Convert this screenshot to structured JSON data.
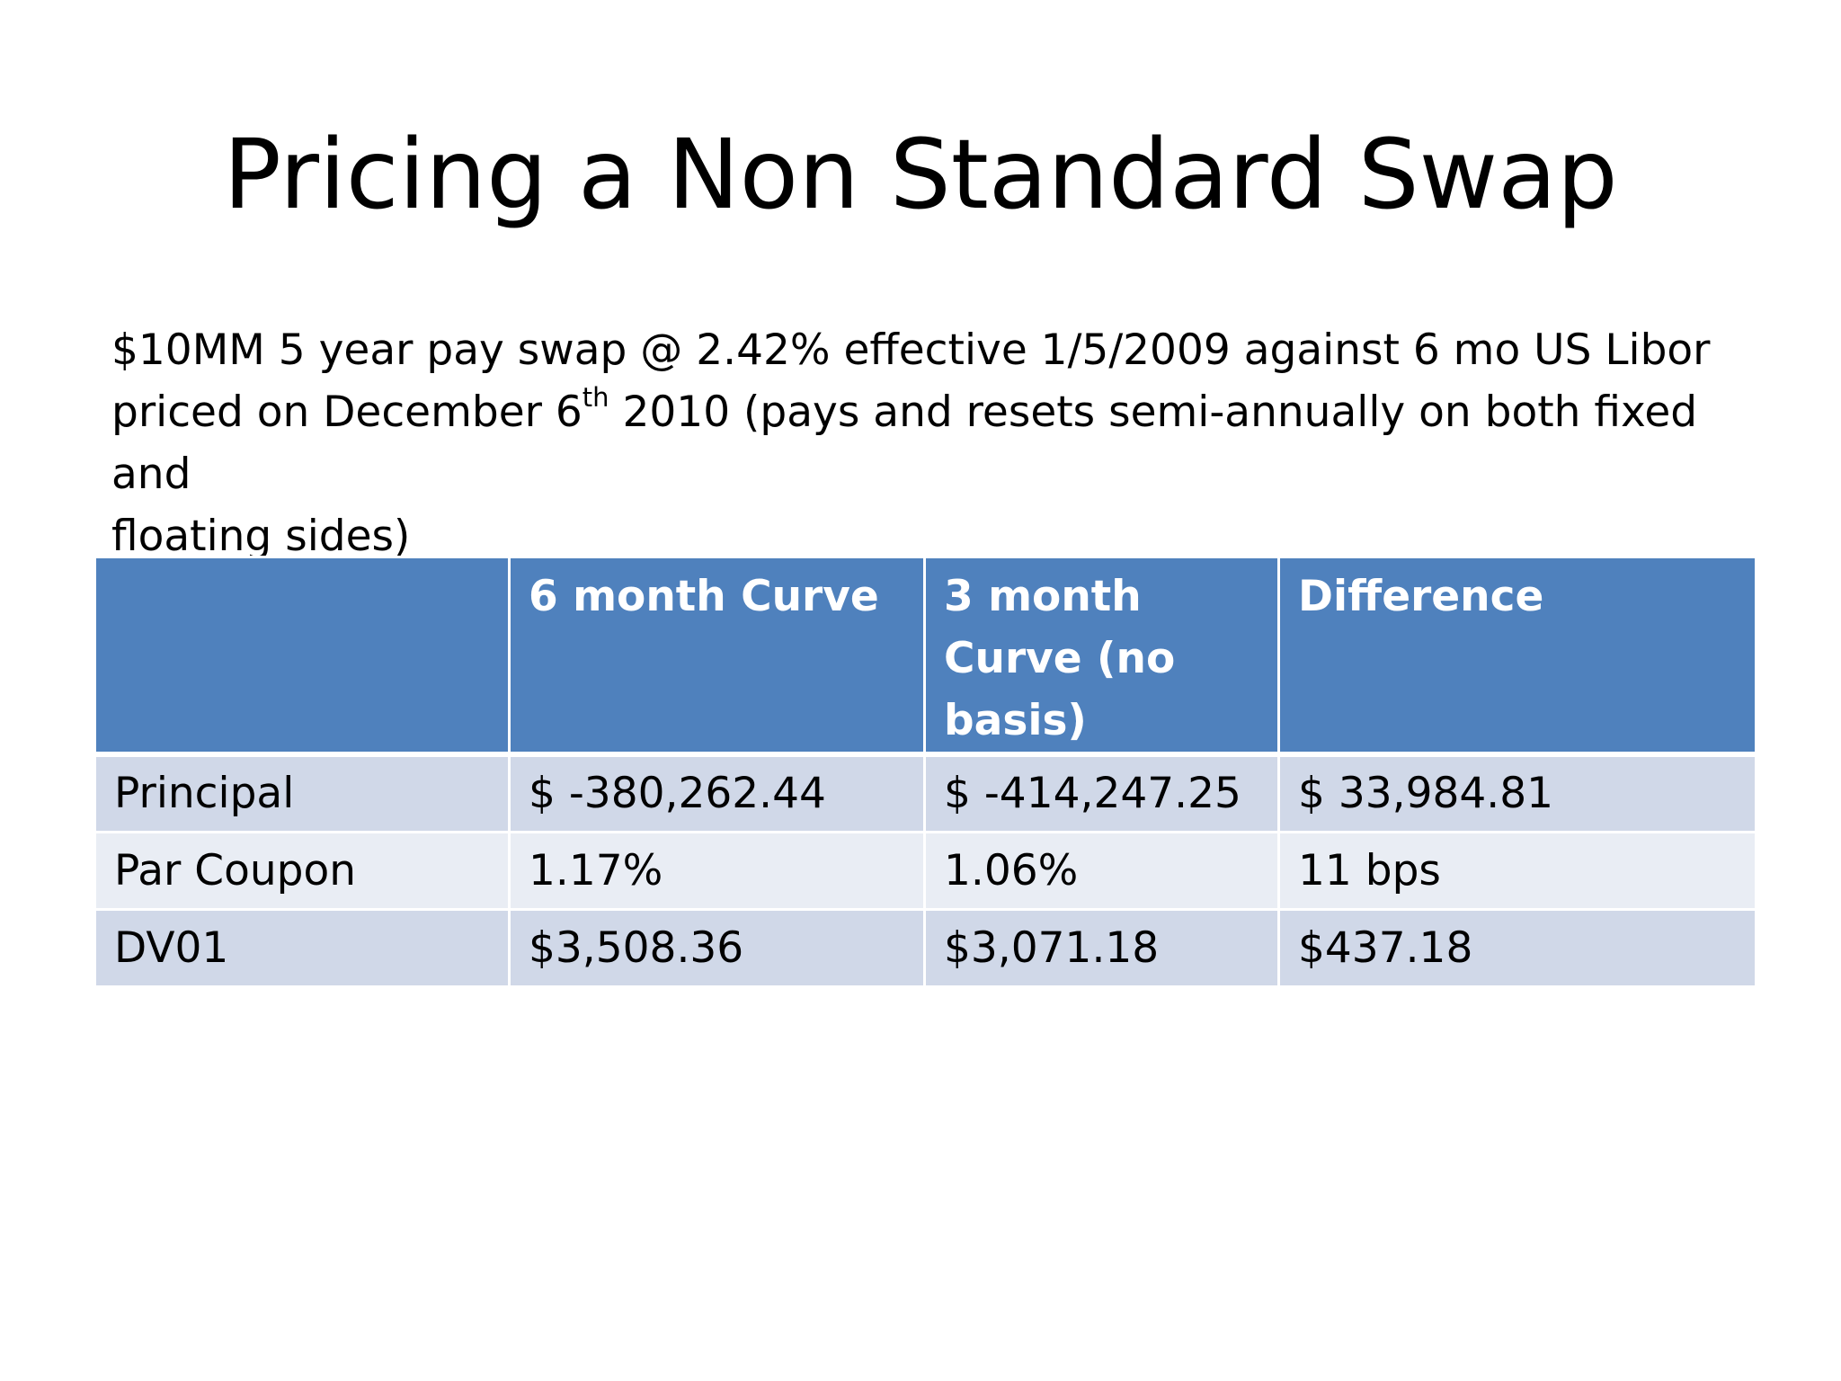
{
  "slide": {
    "title": "Pricing a Non Standard Swap",
    "body": {
      "line1": "$10MM 5 year pay swap @ 2.42% effective 1/5/2009 against 6 mo US Libor",
      "line2_pre": "priced on December 6",
      "line2_sup": "th",
      "line2_post": " 2010 (pays and resets semi-annually on both fixed and",
      "line3": "floating sides)"
    },
    "table": {
      "headers": [
        "",
        "6 month Curve",
        "3 month Curve (no basis)",
        "Difference"
      ],
      "rows": [
        [
          "Principal",
          "$ -380,262.44",
          "$ -414,247.25",
          "$ 33,984.81"
        ],
        [
          "Par Coupon",
          "1.17%",
          "1.06%",
          "11 bps"
        ],
        [
          "DV01",
          "$3,508.36",
          "$3,071.18",
          "$437.18"
        ]
      ]
    }
  }
}
